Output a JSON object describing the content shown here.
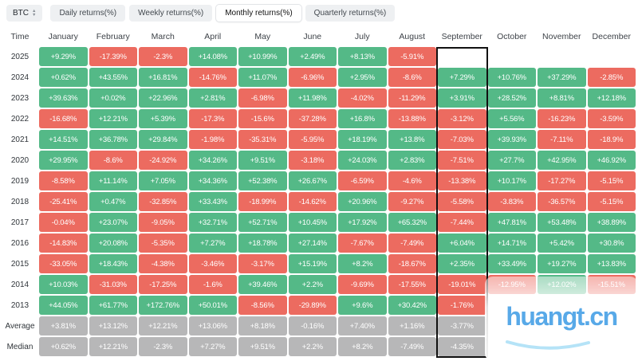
{
  "header": {
    "symbol_select": {
      "label": "BTC",
      "icon": "sort-arrows-icon"
    },
    "tabs": [
      {
        "label": "Daily returns(%)",
        "active": false
      },
      {
        "label": "Weekly returns(%)",
        "active": false
      },
      {
        "label": "Monthly returns(%)",
        "active": true
      },
      {
        "label": "Quarterly returns(%)",
        "active": false
      }
    ]
  },
  "table": {
    "time_header": "Time",
    "highlight_column": "September"
  },
  "chart_data": {
    "type": "heatmap",
    "title": "BTC Monthly returns(%)",
    "columns": [
      "January",
      "February",
      "March",
      "April",
      "May",
      "June",
      "July",
      "August",
      "September",
      "October",
      "November",
      "December"
    ],
    "rows": [
      {
        "label": "2025",
        "kind": "year",
        "values": [
          "+9.29%",
          "-17.39%",
          "-2.3%",
          "+14.08%",
          "+10.99%",
          "+2.49%",
          "+8.13%",
          "-5.91%",
          "",
          "",
          "",
          ""
        ]
      },
      {
        "label": "2024",
        "kind": "year",
        "values": [
          "+0.62%",
          "+43.55%",
          "+16.81%",
          "-14.76%",
          "+11.07%",
          "-6.96%",
          "+2.95%",
          "-8.6%",
          "+7.29%",
          "+10.76%",
          "+37.29%",
          "-2.85%"
        ]
      },
      {
        "label": "2023",
        "kind": "year",
        "values": [
          "+39.63%",
          "+0.02%",
          "+22.96%",
          "+2.81%",
          "-6.98%",
          "+11.98%",
          "-4.02%",
          "-11.29%",
          "+3.91%",
          "+28.52%",
          "+8.81%",
          "+12.18%"
        ]
      },
      {
        "label": "2022",
        "kind": "year",
        "values": [
          "-16.68%",
          "+12.21%",
          "+5.39%",
          "-17.3%",
          "-15.6%",
          "-37.28%",
          "+16.8%",
          "-13.88%",
          "-3.12%",
          "+5.56%",
          "-16.23%",
          "-3.59%"
        ]
      },
      {
        "label": "2021",
        "kind": "year",
        "values": [
          "+14.51%",
          "+36.78%",
          "+29.84%",
          "-1.98%",
          "-35.31%",
          "-5.95%",
          "+18.19%",
          "+13.8%",
          "-7.03%",
          "+39.93%",
          "-7.11%",
          "-18.9%"
        ]
      },
      {
        "label": "2020",
        "kind": "year",
        "values": [
          "+29.95%",
          "-8.6%",
          "-24.92%",
          "+34.26%",
          "+9.51%",
          "-3.18%",
          "+24.03%",
          "+2.83%",
          "-7.51%",
          "+27.7%",
          "+42.95%",
          "+46.92%"
        ]
      },
      {
        "label": "2019",
        "kind": "year",
        "values": [
          "-8.58%",
          "+11.14%",
          "+7.05%",
          "+34.36%",
          "+52.38%",
          "+26.67%",
          "-6.59%",
          "-4.6%",
          "-13.38%",
          "+10.17%",
          "-17.27%",
          "-5.15%"
        ]
      },
      {
        "label": "2018",
        "kind": "year",
        "values": [
          "-25.41%",
          "+0.47%",
          "-32.85%",
          "+33.43%",
          "-18.99%",
          "-14.62%",
          "+20.96%",
          "-9.27%",
          "-5.58%",
          "-3.83%",
          "-36.57%",
          "-5.15%"
        ]
      },
      {
        "label": "2017",
        "kind": "year",
        "values": [
          "-0.04%",
          "+23.07%",
          "-9.05%",
          "+32.71%",
          "+52.71%",
          "+10.45%",
          "+17.92%",
          "+65.32%",
          "-7.44%",
          "+47.81%",
          "+53.48%",
          "+38.89%"
        ]
      },
      {
        "label": "2016",
        "kind": "year",
        "values": [
          "-14.83%",
          "+20.08%",
          "-5.35%",
          "+7.27%",
          "+18.78%",
          "+27.14%",
          "-7.67%",
          "-7.49%",
          "+6.04%",
          "+14.71%",
          "+5.42%",
          "+30.8%"
        ]
      },
      {
        "label": "2015",
        "kind": "year",
        "values": [
          "-33.05%",
          "+18.43%",
          "-4.38%",
          "-3.46%",
          "-3.17%",
          "+15.19%",
          "+8.2%",
          "-18.67%",
          "+2.35%",
          "+33.49%",
          "+19.27%",
          "+13.83%"
        ]
      },
      {
        "label": "2014",
        "kind": "year",
        "values": [
          "+10.03%",
          "-31.03%",
          "-17.25%",
          "-1.6%",
          "+39.46%",
          "+2.2%",
          "-9.69%",
          "-17.55%",
          "-19.01%",
          "-12.95%",
          "+12.02%",
          "-15.51%"
        ]
      },
      {
        "label": "2013",
        "kind": "year",
        "values": [
          "+44.05%",
          "+61.77%",
          "+172.76%",
          "+50.01%",
          "-8.56%",
          "-29.89%",
          "+9.6%",
          "+30.42%",
          "-1.76%",
          "",
          "",
          ""
        ]
      },
      {
        "label": "Average",
        "kind": "stat",
        "values": [
          "+3.81%",
          "+13.12%",
          "+12.21%",
          "+13.06%",
          "+8.18%",
          "-0.16%",
          "+7.40%",
          "+1.16%",
          "-3.77%",
          "",
          "",
          ""
        ]
      },
      {
        "label": "Median",
        "kind": "stat",
        "values": [
          "+0.62%",
          "+12.21%",
          "-2.3%",
          "+7.27%",
          "+9.51%",
          "+2.2%",
          "+8.2%",
          "-7.49%",
          "-4.35%",
          "",
          "",
          ""
        ]
      }
    ]
  },
  "watermark": {
    "text": "huangt.cn"
  },
  "colors": {
    "positive": "#54b987",
    "negative": "#ec6b60",
    "neutral": "#b7b7b8",
    "watermark": "#58a9e8",
    "highlight": "#111111"
  }
}
